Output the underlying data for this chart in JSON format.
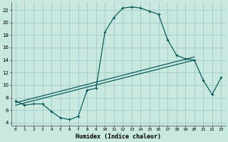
{
  "xlabel": "Humidex (Indice chaleur)",
  "bg_color": "#c8e8e0",
  "grid_color": "#98c4c4",
  "line_color": "#005555",
  "xlim": [
    -0.5,
    23.5
  ],
  "ylim": [
    3.5,
    23.2
  ],
  "xtick_vals": [
    0,
    1,
    2,
    3,
    4,
    5,
    6,
    7,
    8,
    9,
    10,
    11,
    12,
    13,
    14,
    15,
    16,
    17,
    18,
    19,
    20,
    21,
    22,
    23
  ],
  "ytick_vals": [
    4,
    6,
    8,
    10,
    12,
    14,
    16,
    18,
    20,
    22
  ],
  "curve1_x": [
    0,
    1,
    2,
    3,
    4,
    5,
    6,
    7,
    8,
    9,
    10,
    11,
    12,
    13,
    14,
    15,
    16,
    17,
    18,
    19,
    20,
    21,
    22,
    23
  ],
  "curve1_y": [
    7.5,
    6.8,
    7.0,
    7.0,
    5.8,
    4.8,
    4.5,
    5.0,
    9.2,
    9.5,
    18.5,
    20.8,
    22.3,
    22.5,
    22.3,
    21.8,
    21.3,
    17.3,
    14.8,
    14.2,
    14.0,
    10.8,
    8.5,
    11.2
  ],
  "line2_x": [
    0,
    20
  ],
  "line2_y": [
    6.8,
    14.0
  ],
  "line3_x": [
    0,
    20
  ],
  "line3_y": [
    7.2,
    14.5
  ],
  "figw": 3.2,
  "figh": 2.0,
  "dpi": 100
}
